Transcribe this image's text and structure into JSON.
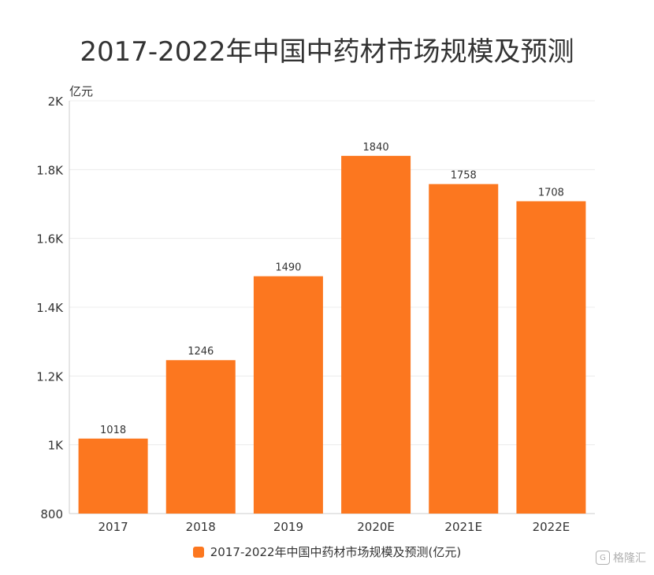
{
  "chart_data": {
    "type": "bar",
    "title": "2017-2022年中国中药材市场规模及预测",
    "ylabel": "亿元",
    "xlabel": "",
    "categories": [
      "2017",
      "2018",
      "2019",
      "2020E",
      "2021E",
      "2022E"
    ],
    "series": [
      {
        "name": "2017-2022年中国中药材市场规模及预测(亿元)",
        "values": [
          1018,
          1246,
          1490,
          1840,
          1758,
          1708
        ]
      }
    ],
    "ylim": [
      800,
      2000
    ],
    "yticks": [
      800,
      1000,
      1200,
      1400,
      1600,
      1800,
      2000
    ],
    "ytick_labels": [
      "800",
      "1K",
      "1.2K",
      "1.4K",
      "1.6K",
      "1.8K",
      "2K"
    ],
    "grid": true,
    "legend_position": "bottom"
  },
  "colors": {
    "bar": "#fc771f",
    "grid": "#ececec",
    "axis": "#cccccc"
  },
  "watermark": "格隆汇"
}
